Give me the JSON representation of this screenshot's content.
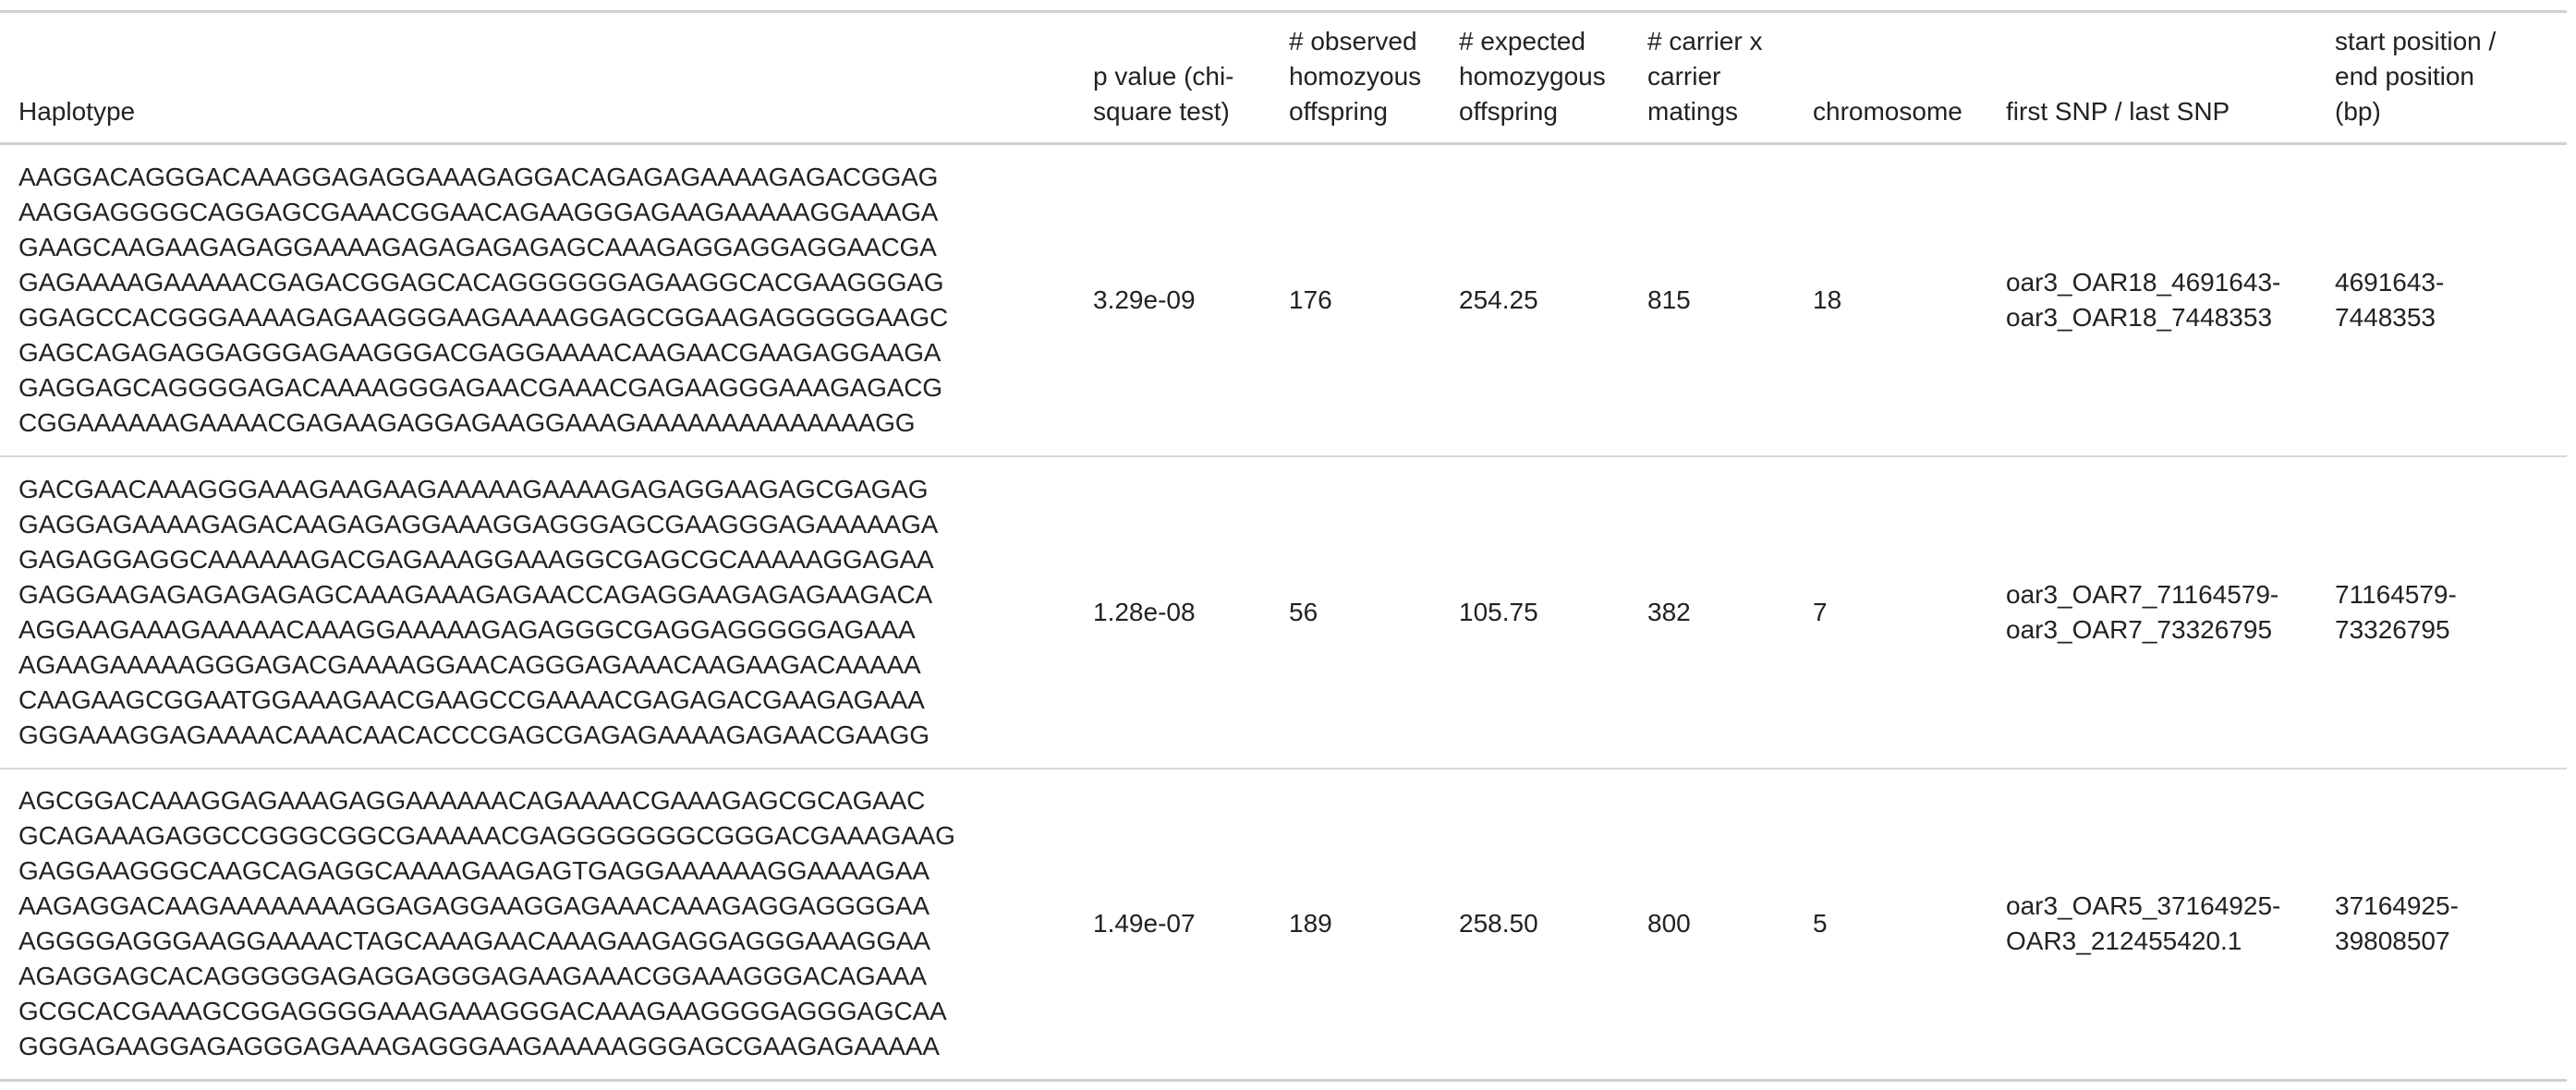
{
  "headers": {
    "haplotype": "Haplotype",
    "pvalue": [
      "p value (chi-",
      "square test)"
    ],
    "observed": [
      "# observed",
      "homozyous",
      "offspring"
    ],
    "expected": [
      "# expected",
      "homozygous",
      "offspring"
    ],
    "carrier": [
      "# carrier x",
      "carrier",
      "matings"
    ],
    "chromosome": "chromosome",
    "snp": "first SNP / last SNP",
    "position": [
      "start position /",
      "end position",
      "(bp)"
    ]
  },
  "rows": [
    {
      "haplotype": [
        "AAGGACAGGGACAAAGGAGAGGAAAGAGGACAGAGAGAAAAGAGACGGAG",
        "AAGGAGGGGCAGGAGCGAAACGGAACAGAAGGGAGAAGAAAAAGGAAAGA",
        "GAAGCAAGAAGAGAGGAAAAGAGAGAGAGAGCAAAGAGGAGGAGGAACGA",
        "GAGAAAAGAAAAACGAGACGGAGCACAGGGGGGAGAAGGCACGAAGGGAG",
        "GGAGCCACGGGAAAAGAGAAGGGAAGAAAAGGAGCGGAAGAGGGGGAAGC",
        "GAGCAGAGAGGAGGGAGAAGGGACGAGGAAAACAAGAACGAAGAGGAAGA",
        "GAGGAGCAGGGGAGACAAAAGGGAGAACGAAACGAGAAGGGAAAGAGACG",
        "CGGAAAAAAGAAAACGAGAAGAGGAGAAGGAAAGAAAAAAAAAAAAAAGG"
      ],
      "pvalue": "3.29e-09",
      "observed": "176",
      "expected": "254.25",
      "carrier": "815",
      "chromosome": "18",
      "snp": [
        "oar3_OAR18_4691643-",
        "oar3_OAR18_7448353"
      ],
      "position": [
        "4691643-",
        "7448353"
      ]
    },
    {
      "haplotype": [
        "GACGAACAAAGGGAAAGAAGAAGAAAAAGAAAAGAGAGGAAGAGCGAGAG",
        "GAGGAGAAAAGAGACAAGAGAGGAAAGGAGGGAGCGAAGGGAGAAAAAGA",
        "GAGAGGAGGCAAAAAAGACGAGAAAGGAAAGGCGAGCGCAAAAAGGAGAA",
        "GAGGAAGAGAGAGAGAGCAAAGAAAGAGAACCAGAGGAAGAGAGAAGACA",
        "AGGAAGAAAGAAAAACAAAGGAAAAAGAGAGGGCGAGGAGGGGGAGAAA",
        "AGAAGAAAAAGGGAGACGAAAAGGAACAGGGAGAAACAAGAAGACAAAAA",
        "CAAGAAGCGGAATGGAAAGAACGAAGCCGAAAACGAGAGACGAAGAGAAA",
        "GGGAAAGGAGAAAACAAACAACACCCGAGCGAGAGAAAAGAGAACGAAGG"
      ],
      "pvalue": "1.28e-08",
      "observed": "56",
      "expected": "105.75",
      "carrier": "382",
      "chromosome": "7",
      "snp": [
        "oar3_OAR7_71164579-",
        "oar3_OAR7_73326795"
      ],
      "position": [
        "71164579-",
        "73326795"
      ]
    },
    {
      "haplotype": [
        "AGCGGACAAAGGAGAAAGAGGAAAAAACAGAAAACGAAAGAGCGCAGAAC",
        "GCAGAAAGAGGCCGGGCGGCGAAAAACGAGGGGGGGCGGGACGAAAGAAG",
        "GAGGAAGGGCAAGCAGAGGCAAAAGAAGAGTGAGGAAAAAAGGAAAAGAA",
        "AAGAGGACAAGAAAAAAAAGGAGAGGAAGGAGAAACAAAGAGGAGGGGAA",
        "AGGGGAGGGAAGGAAAACTAGCAAAGAACAAAGAAGAGGAGGGAAAGGAA",
        "AGAGGAGCACAGGGGGAGAGGAGGGAGAAGAAACGGAAAGGGACAGAAA",
        "GCGCACGAAAGCGGAGGGGAAAGAAAGGGACAAAGAAGGGGAGGGAGCAA",
        "GGGAGAAGGAGAGGGAGAAAGAGGGAAGAAAAAGGGAGCGAAGAGAAAAA"
      ],
      "pvalue": "1.49e-07",
      "observed": "189",
      "expected": "258.50",
      "carrier": "800",
      "chromosome": "5",
      "snp": [
        "oar3_OAR5_37164925-",
        "OAR3_212455420.1"
      ],
      "position": [
        "37164925-",
        "39808507"
      ]
    }
  ]
}
